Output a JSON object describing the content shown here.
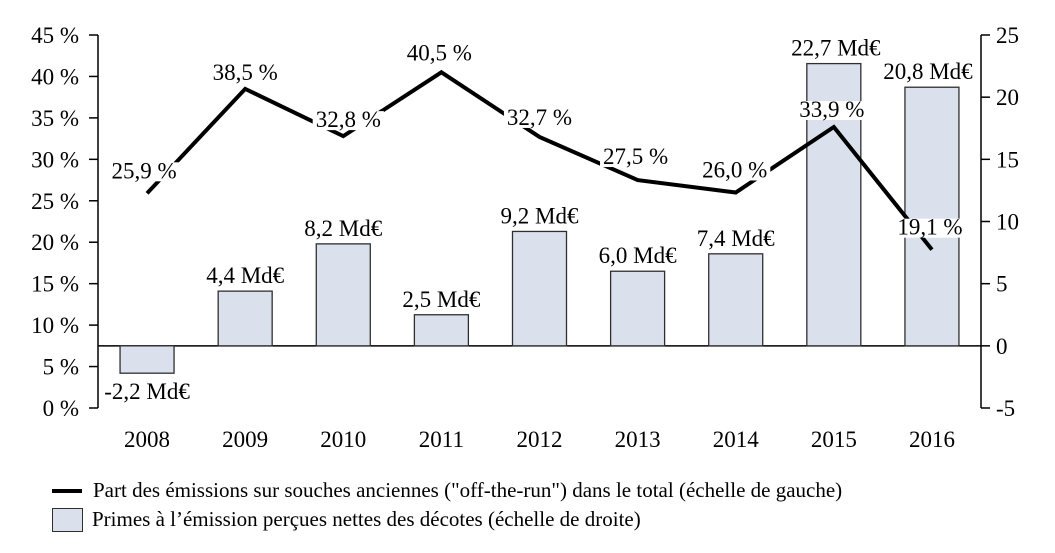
{
  "legend": {
    "line_label": "Part des émissions sur souches anciennes (\"off-the-run\") dans le total (échelle de gauche)",
    "bar_label": "Primes à l’émission perçues nettes des décotes (échelle de droite)"
  },
  "chart_data": {
    "type": "combo",
    "categories": [
      "2008",
      "2009",
      "2010",
      "2011",
      "2012",
      "2013",
      "2014",
      "2015",
      "2016"
    ],
    "series": [
      {
        "name": "Part des émissions sur souches anciennes (\"off-the-run\") dans le total",
        "type": "line",
        "axis": "left",
        "color": "#000000",
        "values": [
          25.9,
          38.5,
          32.8,
          40.5,
          32.7,
          27.5,
          26.0,
          33.9,
          19.1
        ],
        "labels": [
          "25,9 %",
          "38,5 %",
          "32,8 %",
          "40,5 %",
          "32,7 %",
          "27,5 %",
          "26,0 %",
          "33,9 %",
          "19,1 %"
        ]
      },
      {
        "name": "Primes à l’émission perçues nettes des décotes",
        "type": "bar",
        "axis": "right",
        "fill": "#dbe1ec",
        "border": "#2f2f2f",
        "values": [
          -2.2,
          4.4,
          8.2,
          2.5,
          9.2,
          6.0,
          7.4,
          22.7,
          20.8
        ],
        "labels": [
          "-2,2 Md€",
          "4,4 Md€",
          "8,2 Md€",
          "2,5 Md€",
          "9,2 Md€",
          "6,0 Md€",
          "7,4 Md€",
          "22,7 Md€",
          "20,8 Md€"
        ]
      }
    ],
    "left_axis": {
      "min": 0,
      "max": 45,
      "step": 5,
      "unit": "%",
      "tick_labels": [
        "0 %",
        "5 %",
        "10 %",
        "15 %",
        "20 %",
        "25 %",
        "30 %",
        "35 %",
        "40 %",
        "45 %"
      ]
    },
    "right_axis": {
      "min": -5,
      "max": 25,
      "step": 5,
      "unit": "Md€",
      "tick_labels": [
        "-5",
        "0",
        "5",
        "10",
        "15",
        "20",
        "25"
      ]
    },
    "grid": false,
    "legend_position": "bottom"
  }
}
